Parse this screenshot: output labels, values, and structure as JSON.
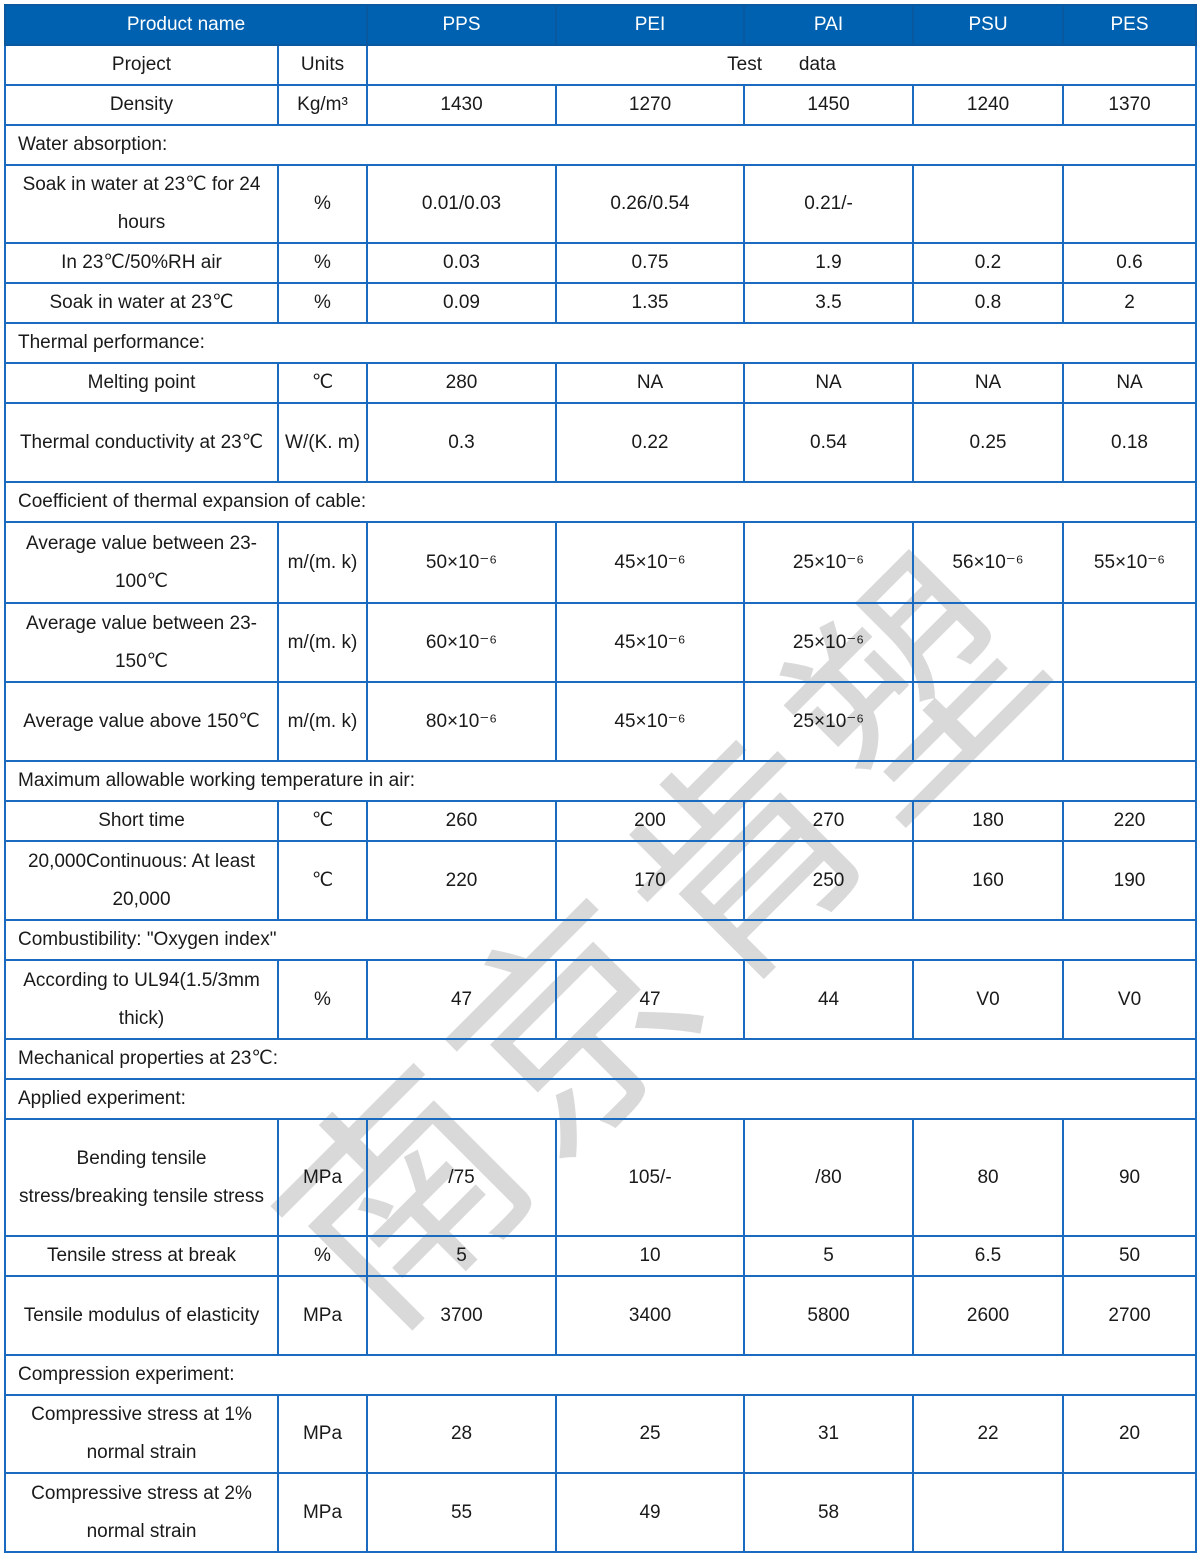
{
  "header": {
    "product_name": "Product name",
    "products": [
      "PPS",
      "PEI",
      "PAI",
      "PSU",
      "PES"
    ]
  },
  "subheader": {
    "project": "Project",
    "units": "Units",
    "test_data": "Test       data"
  },
  "rows": [
    {
      "label": "Density",
      "unit": "Kg/m³",
      "values": [
        "1430",
        "1270",
        "1450",
        "1240",
        "1370"
      ]
    },
    {
      "section": "Water absorption:"
    },
    {
      "label": "Soak in water at 23℃ for 24 hours",
      "unit": "%",
      "values": [
        "0.01/0.03",
        "0.26/0.54",
        "0.21/-",
        "",
        ""
      ]
    },
    {
      "label": "In 23℃/50%RH air",
      "unit": "%",
      "values": [
        "0.03",
        "0.75",
        "1.9",
        "0.2",
        "0.6"
      ]
    },
    {
      "label": "Soak in water at 23℃",
      "unit": "%",
      "values": [
        "0.09",
        "1.35",
        "3.5",
        "0.8",
        "2"
      ]
    },
    {
      "section": "Thermal performance:"
    },
    {
      "label": "Melting point",
      "unit": "℃",
      "values": [
        "280",
        "NA",
        "NA",
        "NA",
        "NA"
      ]
    },
    {
      "label": "Thermal conductivity at 23℃",
      "unit": "W/(K. m)",
      "values": [
        "0.3",
        "0.22",
        "0.54",
        "0.25",
        "0.18"
      ]
    },
    {
      "section": "Coefficient of thermal expansion of cable:"
    },
    {
      "label": "Average value between 23-100℃",
      "unit": "m/(m. k)",
      "values": [
        "50×10⁻⁶",
        "45×10⁻⁶",
        "25×10⁻⁶",
        "56×10⁻⁶",
        "55×10⁻⁶"
      ]
    },
    {
      "label": "Average value between 23-150℃",
      "unit": "m/(m. k)",
      "values": [
        "60×10⁻⁶",
        "45×10⁻⁶",
        "25×10⁻⁶",
        "",
        ""
      ]
    },
    {
      "label": "Average value above 150℃",
      "unit": "m/(m. k)",
      "values": [
        "80×10⁻⁶",
        "45×10⁻⁶",
        "25×10⁻⁶",
        "",
        ""
      ]
    },
    {
      "section": "Maximum allowable working temperature in air:"
    },
    {
      "label": "Short time",
      "unit": "℃",
      "values": [
        "260",
        "200",
        "270",
        "180",
        "220"
      ]
    },
    {
      "label": "20,000Continuous: At least 20,000",
      "unit": "℃",
      "values": [
        "220",
        "170",
        "250",
        "160",
        "190"
      ]
    },
    {
      "section": "Combustibility: \"Oxygen index\""
    },
    {
      "label": "According to UL94(1.5/3mm thick)",
      "unit": "%",
      "values": [
        "47",
        "47",
        "44",
        "V0",
        "V0"
      ]
    },
    {
      "section": "Mechanical properties at 23℃:"
    },
    {
      "section": "Applied experiment:"
    },
    {
      "label": "Bending tensile stress/breaking tensile stress",
      "unit": "MPa",
      "values": [
        "/75",
        "105/-",
        "/80",
        "80",
        "90"
      ]
    },
    {
      "label": "Tensile stress at break",
      "unit": "%",
      "values": [
        "5",
        "10",
        "5",
        "6.5",
        "50"
      ]
    },
    {
      "label": "Tensile modulus of elasticity",
      "unit": "MPa",
      "values": [
        "3700",
        "3400",
        "5800",
        "2600",
        "2700"
      ]
    },
    {
      "section": "Compression experiment:"
    },
    {
      "label": "Compressive stress at 1% normal strain",
      "unit": "MPa",
      "values": [
        "28",
        "25",
        "31",
        "22",
        "20"
      ]
    },
    {
      "label": "Compressive stress at 2% normal strain",
      "unit": "MPa",
      "values": [
        "55",
        "49",
        "58",
        "",
        ""
      ]
    }
  ],
  "watermark": "南京肯塑",
  "colors": {
    "header_bg": "#0061b0",
    "border": "#1a6bbf"
  }
}
